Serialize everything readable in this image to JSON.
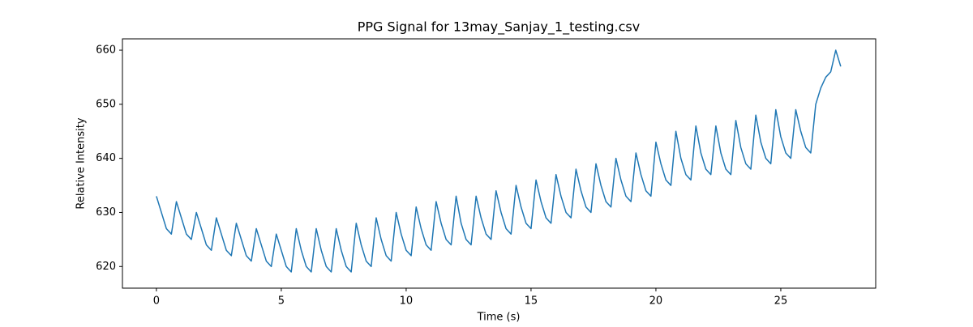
{
  "chart_data": {
    "type": "line",
    "title": "PPG Signal for 13may_Sanjay_1_testing.csv",
    "x_label": "Time (s)",
    "y_label": "Relative Intensity",
    "xlim": [
      -1.36,
      28.8
    ],
    "ylim": [
      616.0,
      662.1
    ],
    "xticks": [
      0,
      5,
      10,
      15,
      20,
      25
    ],
    "yticks": [
      620,
      630,
      640,
      650,
      660
    ],
    "grid": false,
    "series": [
      {
        "name": "PPG",
        "color": "#1f77b4",
        "x": [
          0,
          0.2,
          0.4,
          0.6,
          0.8,
          1,
          1.2,
          1.4,
          1.6,
          1.8,
          2,
          2.2,
          2.4,
          2.6,
          2.8,
          3,
          3.2,
          3.4,
          3.6,
          3.8,
          4,
          4.2,
          4.4,
          4.6,
          4.8,
          5,
          5.2,
          5.4,
          5.6,
          5.8,
          6,
          6.2,
          6.4,
          6.6,
          6.8,
          7,
          7.2,
          7.4,
          7.6,
          7.8,
          8,
          8.2,
          8.4,
          8.6,
          8.8,
          9,
          9.2,
          9.4,
          9.6,
          9.8,
          10,
          10.2,
          10.4,
          10.6,
          10.8,
          11,
          11.2,
          11.4,
          11.6,
          11.8,
          12,
          12.2,
          12.4,
          12.6,
          12.8,
          13,
          13.2,
          13.4,
          13.6,
          13.8,
          14,
          14.2,
          14.4,
          14.6,
          14.8,
          15,
          15.2,
          15.4,
          15.6,
          15.8,
          16,
          16.2,
          16.4,
          16.6,
          16.8,
          17,
          17.2,
          17.4,
          17.6,
          17.8,
          18,
          18.2,
          18.4,
          18.6,
          18.8,
          19,
          19.2,
          19.4,
          19.6,
          19.8,
          20,
          20.2,
          20.4,
          20.6,
          20.8,
          21,
          21.2,
          21.4,
          21.6,
          21.8,
          22,
          22.2,
          22.4,
          22.6,
          22.8,
          23,
          23.2,
          23.4,
          23.6,
          23.8,
          24,
          24.2,
          24.4,
          24.6,
          24.8,
          25,
          25.2,
          25.4,
          25.6,
          25.8,
          26,
          26.2,
          26.4,
          26.6,
          26.8,
          27,
          27.2,
          27.4
        ],
        "values": [
          633,
          630,
          627,
          626,
          632,
          629,
          626,
          625,
          630,
          627,
          624,
          623,
          629,
          626,
          623,
          622,
          628,
          625,
          622,
          621,
          627,
          624,
          621,
          620,
          626,
          623,
          620,
          619,
          627,
          623,
          620,
          619,
          627,
          623,
          620,
          619,
          627,
          623,
          620,
          619,
          628,
          624,
          621,
          620,
          629,
          625,
          622,
          621,
          630,
          626,
          623,
          622,
          631,
          627,
          624,
          623,
          632,
          628,
          625,
          624,
          633,
          628,
          625,
          624,
          633,
          629,
          626,
          625,
          634,
          630,
          627,
          626,
          635,
          631,
          628,
          627,
          636,
          632,
          629,
          628,
          637,
          633,
          630,
          629,
          638,
          634,
          631,
          630,
          639,
          635,
          632,
          631,
          640,
          636,
          633,
          632,
          641,
          637,
          634,
          633,
          643,
          639,
          636,
          635,
          645,
          640,
          637,
          636,
          646,
          641,
          638,
          637,
          646,
          641,
          638,
          637,
          647,
          642,
          639,
          638,
          648,
          643,
          640,
          639,
          649,
          644,
          641,
          640,
          649,
          645,
          642,
          641,
          650,
          653,
          655,
          656,
          660,
          657
        ]
      }
    ]
  }
}
